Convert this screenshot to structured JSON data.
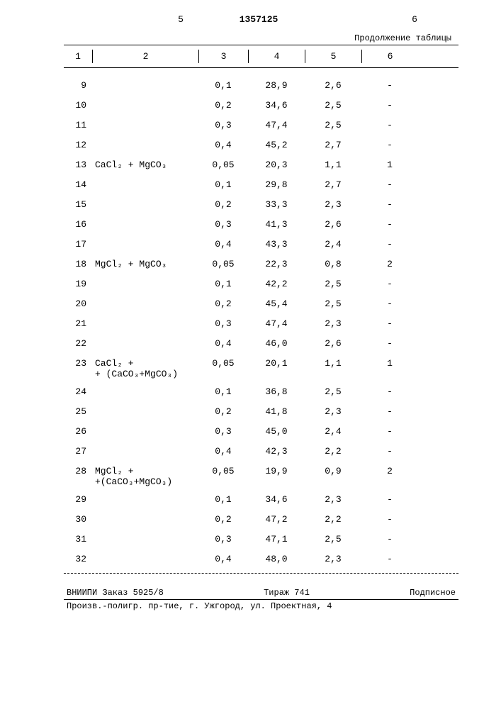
{
  "page": {
    "left_mark": "5",
    "patent_no": "1357125",
    "right_mark": "6",
    "continuation": "Продолжение таблицы"
  },
  "table": {
    "columns": [
      "1",
      "2",
      "3",
      "4",
      "5",
      "6"
    ],
    "rows": [
      {
        "n": "9",
        "chem": "",
        "c3": "0,1",
        "c4": "28,9",
        "c5": "2,6",
        "c6": "-"
      },
      {
        "n": "10",
        "chem": "",
        "c3": "0,2",
        "c4": "34,6",
        "c5": "2,5",
        "c6": "-"
      },
      {
        "n": "11",
        "chem": "",
        "c3": "0,3",
        "c4": "47,4",
        "c5": "2,5",
        "c6": "-"
      },
      {
        "n": "12",
        "chem": "",
        "c3": "0,4",
        "c4": "45,2",
        "c5": "2,7",
        "c6": "-"
      },
      {
        "n": "13",
        "chem": "CaCl₂ + MgCO₃",
        "c3": "0,05",
        "c4": "20,3",
        "c5": "1,1",
        "c6": "1"
      },
      {
        "n": "14",
        "chem": "",
        "c3": "0,1",
        "c4": "29,8",
        "c5": "2,7",
        "c6": "-"
      },
      {
        "n": "15",
        "chem": "",
        "c3": "0,2",
        "c4": "33,3",
        "c5": "2,3",
        "c6": "-"
      },
      {
        "n": "16",
        "chem": "",
        "c3": "0,3",
        "c4": "41,3",
        "c5": "2,6",
        "c6": "-"
      },
      {
        "n": "17",
        "chem": "",
        "c3": "0,4",
        "c4": "43,3",
        "c5": "2,4",
        "c6": "-"
      },
      {
        "n": "18",
        "chem": "MgCl₂ + MgCO₃",
        "c3": "0,05",
        "c4": "22,3",
        "c5": "0,8",
        "c6": "2"
      },
      {
        "n": "19",
        "chem": "",
        "c3": "0,1",
        "c4": "42,2",
        "c5": "2,5",
        "c6": "-"
      },
      {
        "n": "20",
        "chem": "",
        "c3": "0,2",
        "c4": "45,4",
        "c5": "2,5",
        "c6": "-"
      },
      {
        "n": "21",
        "chem": "",
        "c3": "0,3",
        "c4": "47,4",
        "c5": "2,3",
        "c6": "-"
      },
      {
        "n": "22",
        "chem": "",
        "c3": "0,4",
        "c4": "46,0",
        "c5": "2,6",
        "c6": "-"
      },
      {
        "n": "23",
        "chem": "CaCl₂ +\n+ (CaCO₃+MgCO₃)",
        "c3": "0,05",
        "c4": "20,1",
        "c5": "1,1",
        "c6": "1"
      },
      {
        "n": "24",
        "chem": "",
        "c3": "0,1",
        "c4": "36,8",
        "c5": "2,5",
        "c6": "-"
      },
      {
        "n": "25",
        "chem": "",
        "c3": "0,2",
        "c4": "41,8",
        "c5": "2,3",
        "c6": "-"
      },
      {
        "n": "26",
        "chem": "",
        "c3": "0,3",
        "c4": "45,0",
        "c5": "2,4",
        "c6": "-"
      },
      {
        "n": "27",
        "chem": "",
        "c3": "0,4",
        "c4": "42,3",
        "c5": "2,2",
        "c6": "-"
      },
      {
        "n": "28",
        "chem": "MgCl₂ +\n+(CaCO₃+MgCO₃)",
        "c3": "0,05",
        "c4": "19,9",
        "c5": "0,9",
        "c6": "2"
      },
      {
        "n": "29",
        "chem": "",
        "c3": "0,1",
        "c4": "34,6",
        "c5": "2,3",
        "c6": "-"
      },
      {
        "n": "30",
        "chem": "",
        "c3": "0,2",
        "c4": "47,2",
        "c5": "2,2",
        "c6": "-"
      },
      {
        "n": "31",
        "chem": "",
        "c3": "0,3",
        "c4": "47,1",
        "c5": "2,5",
        "c6": "-"
      },
      {
        "n": "32",
        "chem": "",
        "c3": "0,4",
        "c4": "48,0",
        "c5": "2,3",
        "c6": "-"
      }
    ]
  },
  "footer": {
    "order": "ВНИИПИ Заказ 5925/8",
    "tirazh": "Тираж 741",
    "podpisnoe": "Подписное",
    "printer": "Произв.-полигр. пр-тие, г. Ужгород, ул. Проектная, 4"
  }
}
